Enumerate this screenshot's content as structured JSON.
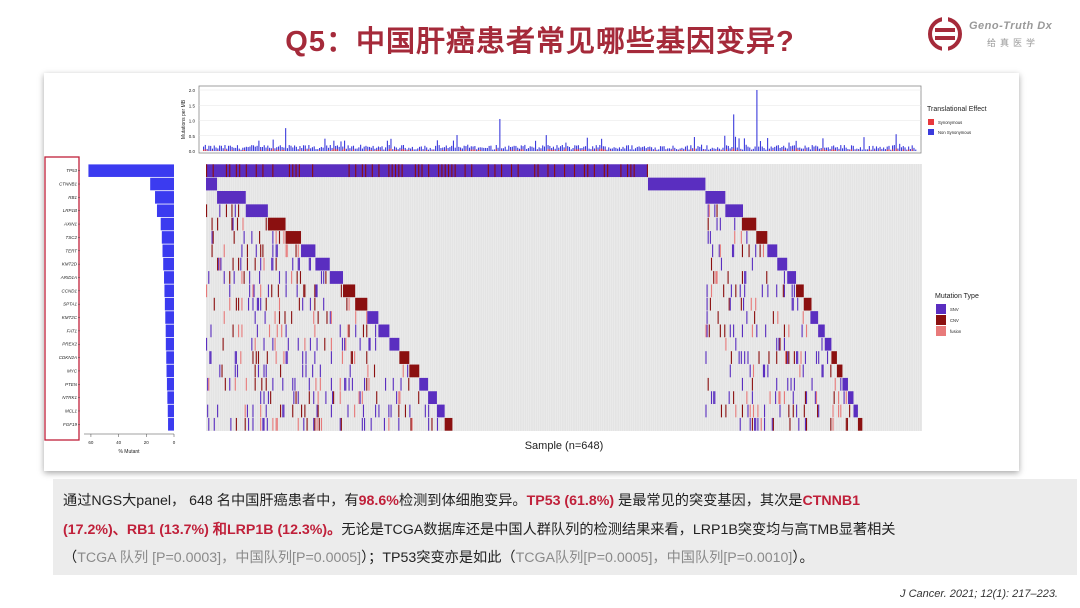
{
  "title": "Q5：中国肝癌患者常见哪些基因变异?",
  "logo": {
    "en": "Geno-Truth Dx",
    "cn": "给真医学",
    "mark_color": "#a52a3a"
  },
  "chart_data": {
    "type": "heatmap",
    "top_panel": {
      "type": "bar",
      "ylabel": "Mutations per MB",
      "yticks": [
        "0.0",
        "0.5",
        "1.0",
        "1.5",
        "2.0"
      ],
      "ylim": [
        0,
        2.0
      ],
      "legend_title": "Translational Effect",
      "legend": [
        {
          "name": "Synonymous",
          "color": "#e8383d"
        },
        {
          "name": "Non Synonymous",
          "color": "#3b3bdc"
        }
      ]
    },
    "left_panel": {
      "type": "bar",
      "xlabel": "% Mutant",
      "xticks": [
        "60",
        "40",
        "20",
        "0"
      ],
      "genes": [
        "TP53",
        "CTNNB1",
        "RB1",
        "LRP1B",
        "AXIN1",
        "TSC2",
        "TERT",
        "KMT2D",
        "ARID1A",
        "CCND1",
        "SPTA1",
        "KMT2C",
        "FAT1",
        "PREX2",
        "CDKN2A",
        "MYC",
        "PTEN",
        "NTRK1",
        "MCL1",
        "FGF19"
      ],
      "values": [
        61.8,
        17.2,
        13.7,
        12.3,
        9.6,
        8.8,
        8.3,
        7.8,
        7.2,
        6.9,
        6.6,
        6.3,
        6.0,
        5.9,
        5.6,
        5.4,
        5.1,
        4.8,
        4.5,
        4.3
      ],
      "bar_color": "#3b3bf0",
      "highlight_box_color": "#c0203a"
    },
    "main_panel": {
      "xlabel": "Sample (n=648)",
      "samples": 648,
      "cell_background": "#e4e4e4",
      "legend_title": "Mutation Type",
      "legend": [
        {
          "name": "SNV",
          "color": "#5a2ec0"
        },
        {
          "name": "CNV",
          "color": "#8b1010"
        },
        {
          "name": "fusion",
          "color": "#e87a7a"
        }
      ]
    }
  },
  "text": {
    "p1a": "通过NGS大panel， 648 名中国肝癌患者中，有",
    "p1b": "98.6%",
    "p1c": "检测到体细胞变异。",
    "p1d": "TP53 (61.8%)",
    "p1e": " 是最常见的突变基因，其次是",
    "p1f": "CTNNB1",
    "p2a": "(17.2%)、RB1 (13.7%) 和LRP1B (12.3%)。",
    "p2b": "无论是TCGA数据库还是中国人群队列的检测结果来看，LRP1B突变均与高TMB显著相关",
    "p3a": "（",
    "p3b": "TCGA 队列 [P=0.0003]，中国队列[P=0.0005]",
    "p3c": "）；TP53突变亦是如此（",
    "p3d": "TCGA队列[P=0.0005]，中国队列[P=0.0010]",
    "p3e": "）。"
  },
  "citation": "J Cancer. 2021; 12(1): 217–223."
}
